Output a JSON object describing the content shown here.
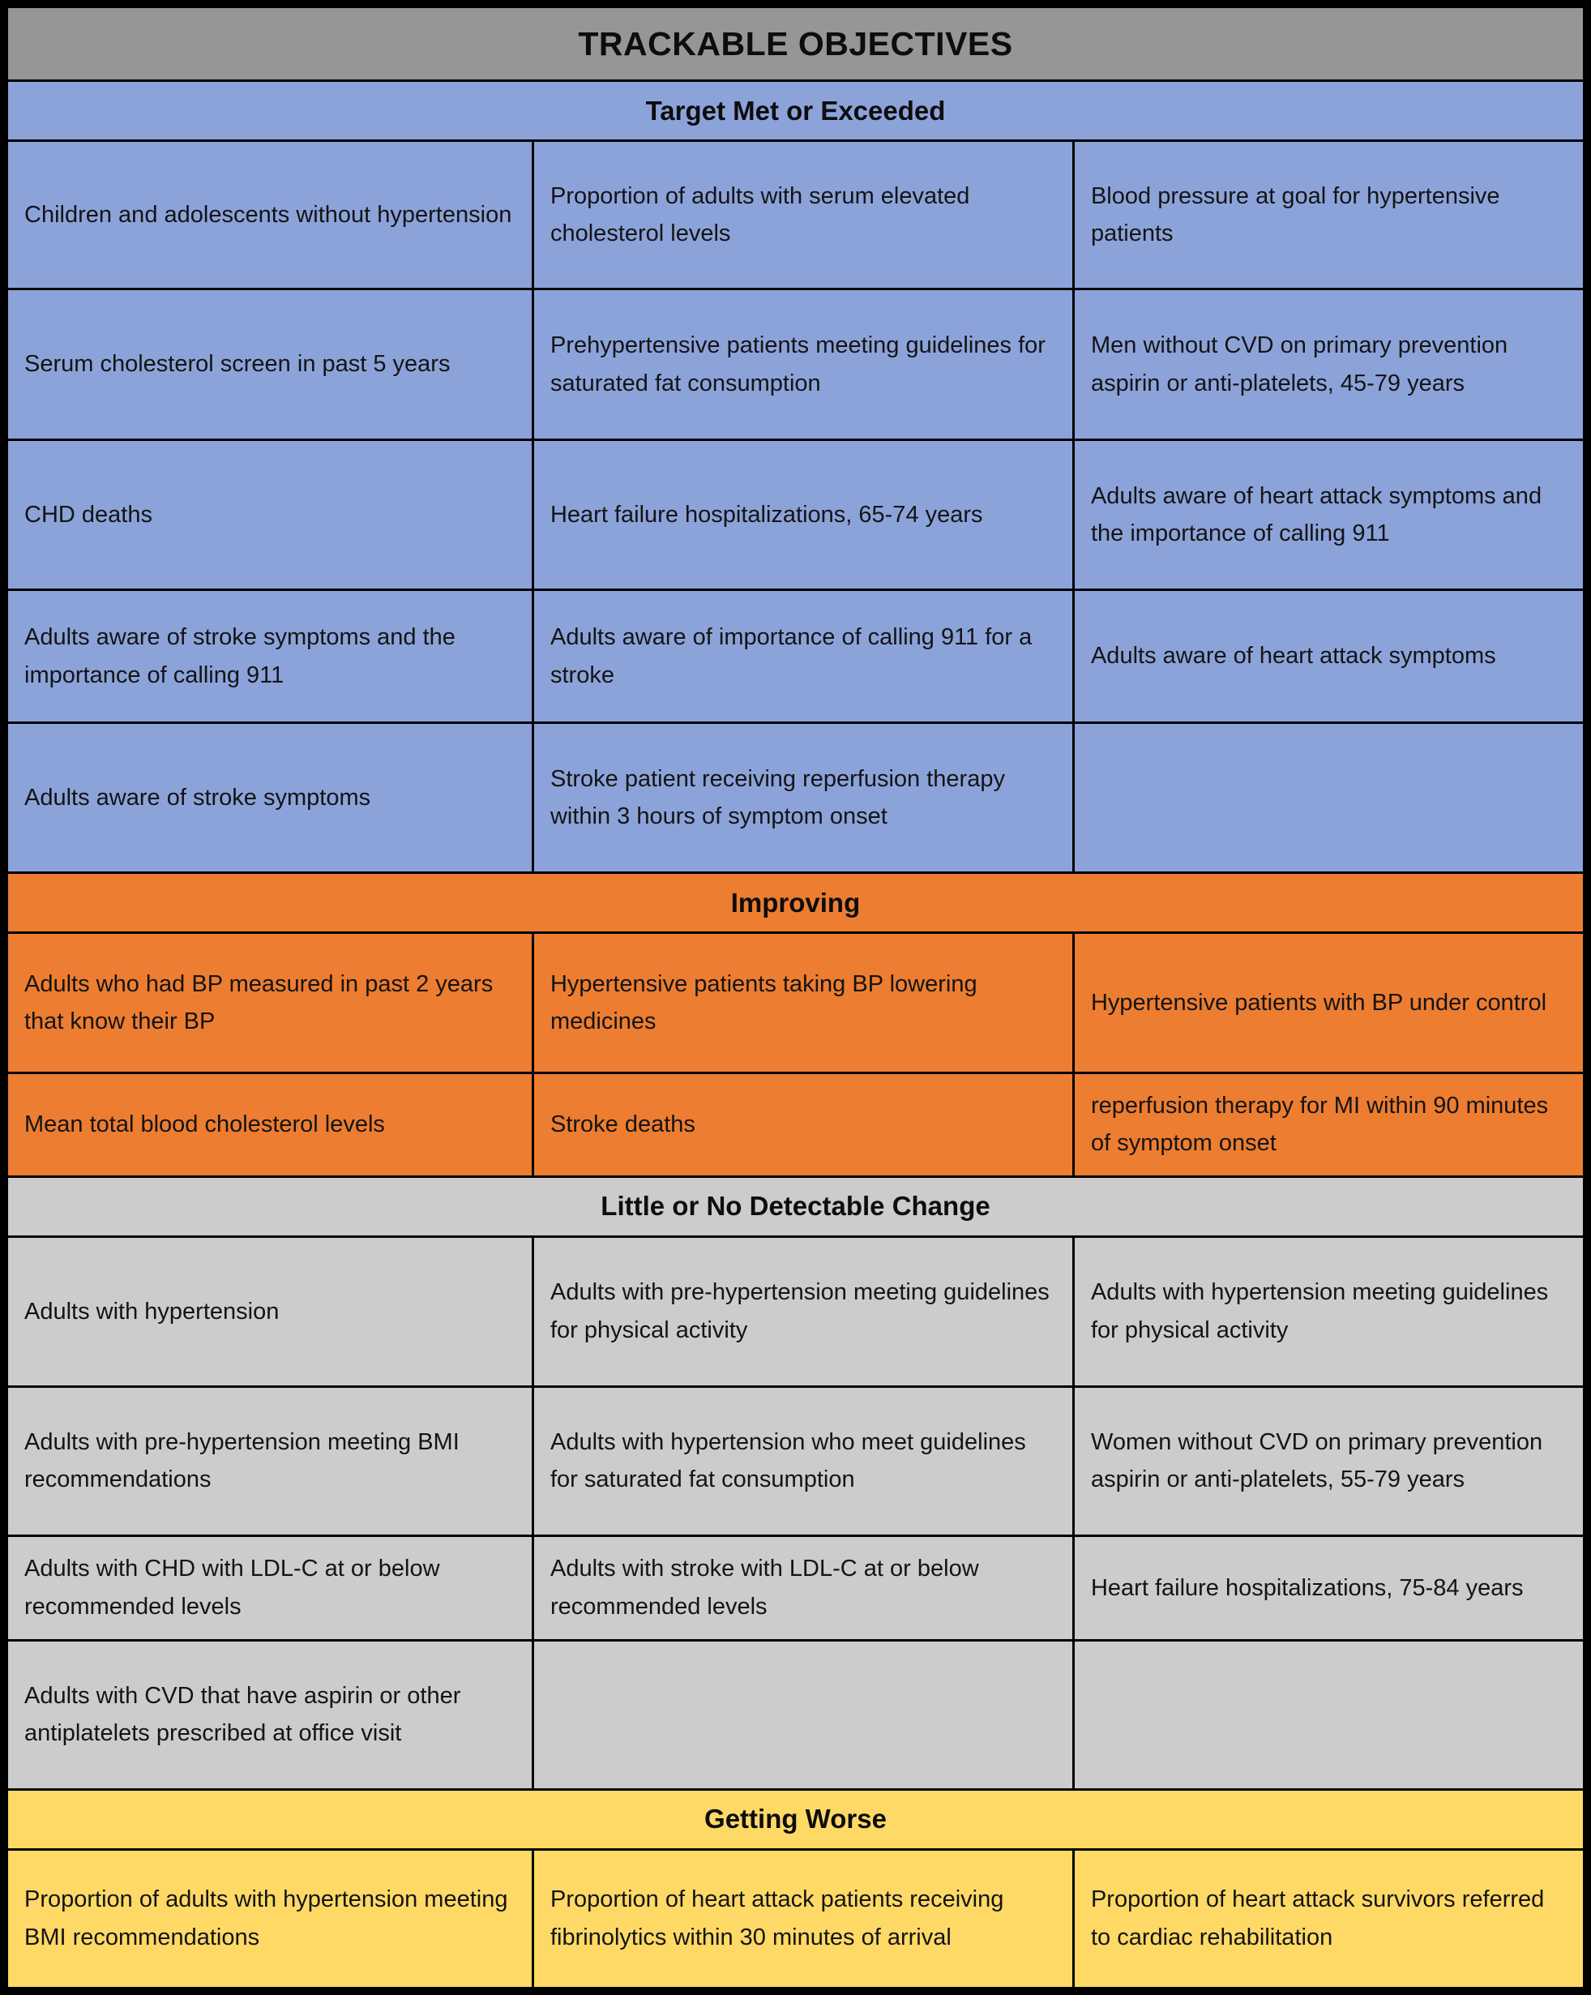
{
  "title": "TRACKABLE OBJECTIVES",
  "colors": {
    "border": "#000000",
    "title_bg": "#969696",
    "text": "#141414",
    "target_met_bg": "#8CA3DA",
    "improving_bg": "#ED7D31",
    "little_change_bg": "#CCCCCC",
    "getting_worse_bg": "#FFD966"
  },
  "chart_data": {
    "type": "table",
    "title": "TRACKABLE OBJECTIVES",
    "sections": [
      {
        "label": "Target Met or Exceeded",
        "color": "#8CA3DA",
        "rows": [
          [
            "Children and adolescents without hypertension",
            "Proportion of adults with serum elevated cholesterol levels",
            "Blood pressure at goal for hypertensive patients"
          ],
          [
            "Serum cholesterol screen in past 5 years",
            "Prehypertensive patients meeting guidelines for saturated fat consumption",
            "Men without CVD on primary prevention aspirin or anti-platelets, 45-79 years"
          ],
          [
            "CHD deaths",
            "Heart failure hospitalizations, 65-74 years",
            "Adults aware of heart attack symptoms and the importance of calling 911"
          ],
          [
            "Adults aware of stroke symptoms and the importance of calling 911",
            "Adults aware of importance of calling 911 for a stroke",
            "Adults aware of heart attack symptoms"
          ],
          [
            "Adults aware of stroke symptoms",
            "Stroke patient receiving reperfusion therapy within 3 hours of symptom onset",
            ""
          ]
        ]
      },
      {
        "label": "Improving",
        "color": "#ED7D31",
        "rows": [
          [
            "Adults who had BP measured in past 2 years that know their BP",
            "Hypertensive patients taking BP lowering medicines",
            "Hypertensive patients with BP under control"
          ],
          [
            "Mean total blood cholesterol levels",
            "Stroke deaths",
            "reperfusion therapy for MI within 90 minutes of symptom onset"
          ]
        ]
      },
      {
        "label": "Little or No Detectable Change",
        "color": "#CCCCCC",
        "rows": [
          [
            "Adults with hypertension",
            "Adults with pre-hypertension meeting guidelines for physical activity",
            "Adults with hypertension meeting guidelines for physical activity"
          ],
          [
            "Adults with pre-hypertension meeting BMI recommendations",
            "Adults with hypertension who meet guidelines for saturated fat consumption",
            "Women without CVD on primary prevention aspirin or anti-platelets, 55-79 years"
          ],
          [
            "Adults with CHD with LDL-C at or below recommended levels",
            "Adults with stroke with LDL-C at or below recommended levels",
            "Heart failure hospitalizations, 75-84 years"
          ],
          [
            "Adults with CVD that have aspirin or other antiplatelets prescribed at office visit",
            "",
            ""
          ]
        ]
      },
      {
        "label": "Getting Worse",
        "color": "#FFD966",
        "rows": [
          [
            "Proportion of adults with hypertension meeting BMI recommendations",
            "Proportion of heart attack patients receiving fibrinolytics within 30 minutes of arrival",
            "Proportion of heart attack survivors referred to cardiac rehabilitation"
          ]
        ]
      }
    ]
  }
}
